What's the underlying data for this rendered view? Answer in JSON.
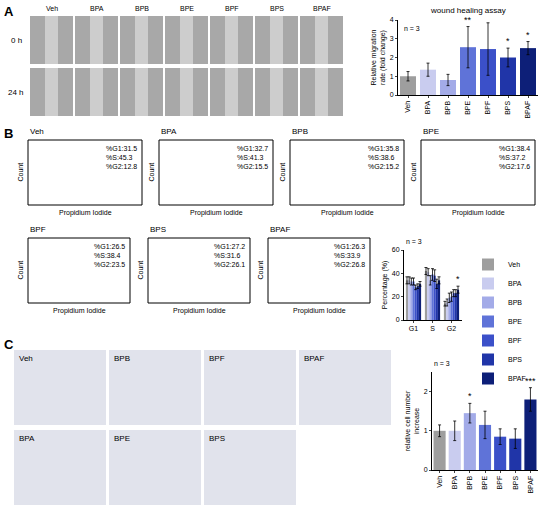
{
  "panel_letters": [
    "A",
    "B",
    "C"
  ],
  "wound_images": {
    "columns": [
      "Veh",
      "BPA",
      "BPB",
      "BPE",
      "BPF",
      "BPS",
      "BPAF"
    ],
    "rows": [
      "0 h",
      "24 h"
    ]
  },
  "cell_cycle_histograms": {
    "x_label": "Propidium Iodide",
    "y_label": "Count",
    "panels": [
      {
        "label": "Veh",
        "stats": [
          "%G1:31.5",
          "%S:45.3",
          "%G2:12.8"
        ]
      },
      {
        "label": "BPA",
        "stats": [
          "%G1:32.7",
          "%S:41.3",
          "%G2:15.5"
        ]
      },
      {
        "label": "BPB",
        "stats": [
          "%G1:35.8",
          "%S:38.6",
          "%G2:15.2"
        ]
      },
      {
        "label": "BPE",
        "stats": [
          "%G1:38.4",
          "%S:37.2",
          "%G2:17.6"
        ]
      },
      {
        "label": "BPF",
        "stats": [
          "%G1:26.5",
          "%S:38.4",
          "%G2:23.5"
        ]
      },
      {
        "label": "BPS",
        "stats": [
          "%G1:27.2",
          "%S:31.6",
          "%G2:26.1"
        ]
      },
      {
        "label": "BPAF",
        "stats": [
          "%G1:26.3",
          "%S:33.9",
          "%G2:26.8"
        ]
      }
    ]
  },
  "transwell_images": {
    "labels": [
      "Veh",
      "BPB",
      "BPF",
      "BPAF",
      "BPA",
      "BPE",
      "BPS"
    ]
  },
  "chart_data": [
    {
      "type": "bar",
      "title": "wound healing assay",
      "y_label": "Relative migration rate (fold change)",
      "annotations": [
        "n = 3"
      ],
      "categories": [
        "Veh",
        "BPA",
        "BPB",
        "BPE",
        "BPF",
        "BPS",
        "BPAF"
      ],
      "values": [
        1.0,
        1.35,
        0.8,
        2.55,
        2.45,
        2.0,
        2.5
      ],
      "errors": [
        0.25,
        0.35,
        0.3,
        1.1,
        1.4,
        0.5,
        0.35
      ],
      "significance": [
        null,
        null,
        null,
        "**",
        null,
        "*",
        "*"
      ],
      "colors": [
        "#9e9e9e",
        "#c9ccef",
        "#a3abe8",
        "#5f73d8",
        "#3b50c9",
        "#2035a8",
        "#0d1f78"
      ],
      "ylim": [
        0,
        4
      ],
      "yticks": [
        0,
        1,
        2,
        3,
        4
      ],
      "grid": false
    },
    {
      "type": "bar",
      "y_label": "Percentage (%)",
      "annotations": [
        "n = 3"
      ],
      "categories": [
        "G1",
        "S",
        "G2"
      ],
      "series": [
        {
          "name": "Veh",
          "color": "#9e9e9e",
          "values": [
            34,
            42,
            14
          ],
          "errors": [
            3,
            3,
            2
          ],
          "significance": [
            null,
            null,
            null
          ]
        },
        {
          "name": "BPA",
          "color": "#c9ccef",
          "values": [
            34,
            41,
            15
          ],
          "errors": [
            3,
            3,
            3
          ],
          "significance": [
            null,
            null,
            null
          ]
        },
        {
          "name": "BPB",
          "color": "#a3abe8",
          "values": [
            33,
            34,
            19
          ],
          "errors": [
            3,
            4,
            4
          ],
          "significance": [
            null,
            null,
            null
          ]
        },
        {
          "name": "BPE",
          "color": "#5f73d8",
          "values": [
            33,
            39,
            20
          ],
          "errors": [
            3,
            5,
            4
          ],
          "significance": [
            null,
            null,
            null
          ]
        },
        {
          "name": "BPF",
          "color": "#3b50c9",
          "values": [
            28,
            38,
            23
          ],
          "errors": [
            2,
            5,
            3
          ],
          "significance": [
            null,
            null,
            null
          ]
        },
        {
          "name": "BPS",
          "color": "#2035a8",
          "values": [
            29,
            31,
            23
          ],
          "errors": [
            2,
            4,
            3
          ],
          "significance": [
            null,
            null,
            null
          ]
        },
        {
          "name": "BPAF",
          "color": "#0d1f78",
          "values": [
            31,
            34,
            26
          ],
          "errors": [
            2,
            3,
            3
          ],
          "significance": [
            null,
            null,
            "*"
          ]
        }
      ],
      "ylim": [
        0,
        60
      ],
      "yticks": [
        0,
        20,
        40,
        60
      ],
      "grid": false,
      "legend": "right"
    },
    {
      "type": "bar",
      "y_label": "relative cell number increase",
      "annotations": [
        "n = 3"
      ],
      "categories": [
        "Veh",
        "BPA",
        "BPB",
        "BPE",
        "BPF",
        "BPS",
        "BPAF"
      ],
      "values": [
        1.0,
        1.0,
        1.45,
        1.15,
        0.85,
        0.8,
        1.8
      ],
      "errors": [
        0.15,
        0.25,
        0.25,
        0.35,
        0.2,
        0.25,
        0.3
      ],
      "significance": [
        null,
        null,
        "*",
        null,
        null,
        null,
        "***"
      ],
      "colors": [
        "#9e9e9e",
        "#c9ccef",
        "#a3abe8",
        "#5f73d8",
        "#3b50c9",
        "#2035a8",
        "#0d1f78"
      ],
      "ylim": [
        0,
        2.5
      ],
      "yticks": [
        0,
        1,
        2
      ],
      "grid": false
    }
  ]
}
